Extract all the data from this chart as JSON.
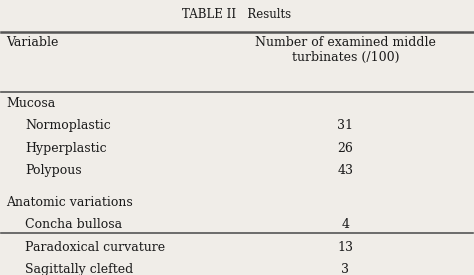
{
  "title": "TABLE II   Results",
  "col1_header": "Variable",
  "col2_header": "Number of examined middle\nturbinates (/100)",
  "sections": [
    {
      "section_label": "Mucosa",
      "rows": [
        {
          "label": "Normoplastic",
          "value": "31"
        },
        {
          "label": "Hyperplastic",
          "value": "26"
        },
        {
          "label": "Polypous",
          "value": "43"
        }
      ]
    },
    {
      "section_label": "Anatomic variations",
      "rows": [
        {
          "label": "Concha bullosa",
          "value": "4"
        },
        {
          "label": "Paradoxical curvature",
          "value": "13"
        },
        {
          "label": "Sagittally clefted",
          "value": "3"
        }
      ]
    }
  ],
  "bg_color": "#f0ede8",
  "text_color": "#1a1a1a",
  "line_color": "#555555",
  "title_fontsize": 8.5,
  "header_fontsize": 9,
  "body_fontsize": 9,
  "section_fontsize": 9
}
